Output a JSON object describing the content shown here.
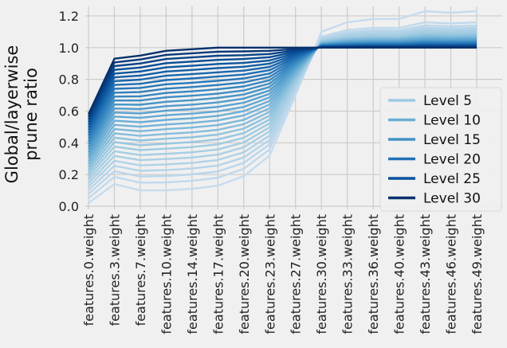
{
  "chart_data": {
    "type": "line",
    "ylabel": "Global/layerwise\nprune ratio",
    "xlabel": "",
    "ylim": [
      -0.02,
      1.26
    ],
    "yticks": [
      0.0,
      0.2,
      0.4,
      0.6,
      0.8,
      1.0,
      1.2
    ],
    "grid": true,
    "legend_position": "right-center",
    "categories": [
      "features.0.weight",
      "features.3.weight",
      "features.7.weight",
      "features.10.weight",
      "features.14.weight",
      "features.17.weight",
      "features.20.weight",
      "features.23.weight",
      "features.27.weight",
      "features.30.weight",
      "features.33.weight",
      "features.36.weight",
      "features.40.weight",
      "features.43.weight",
      "features.46.weight",
      "features.49.weight"
    ],
    "levels_range": [
      1,
      30
    ],
    "series_shape": {
      "low_curve": [
        0.02,
        0.14,
        0.1,
        0.1,
        0.11,
        0.13,
        0.19,
        0.32,
        0.7,
        0.97,
        1.0,
        1.0,
        1.0,
        1.0,
        1.0,
        1.0
      ],
      "high_curve": [
        0.58,
        0.93,
        0.95,
        0.98,
        0.99,
        1.0,
        1.0,
        1.0,
        1.0,
        1.0,
        1.0,
        1.0,
        1.0,
        1.0,
        1.0,
        1.0
      ],
      "tail_low": [
        1.0,
        1.0,
        1.0,
        1.0,
        1.0,
        1.0,
        1.0,
        1.0,
        1.0,
        1.1,
        1.16,
        1.18,
        1.18,
        1.23,
        1.22,
        1.23
      ],
      "tail_high": [
        1.0,
        1.0,
        1.0,
        1.0,
        1.0,
        1.0,
        1.0,
        1.0,
        1.0,
        1.0,
        1.0,
        1.0,
        1.0,
        1.0,
        1.0,
        1.0
      ]
    },
    "legend": [
      {
        "label": "Level 5",
        "color": "#9ecae1"
      },
      {
        "label": "Level 10",
        "color": "#6baed6"
      },
      {
        "label": "Level 15",
        "color": "#4292c6"
      },
      {
        "label": "Level 20",
        "color": "#2171b5"
      },
      {
        "label": "Level 25",
        "color": "#08519c"
      },
      {
        "label": "Level 30",
        "color": "#08306b"
      }
    ]
  }
}
